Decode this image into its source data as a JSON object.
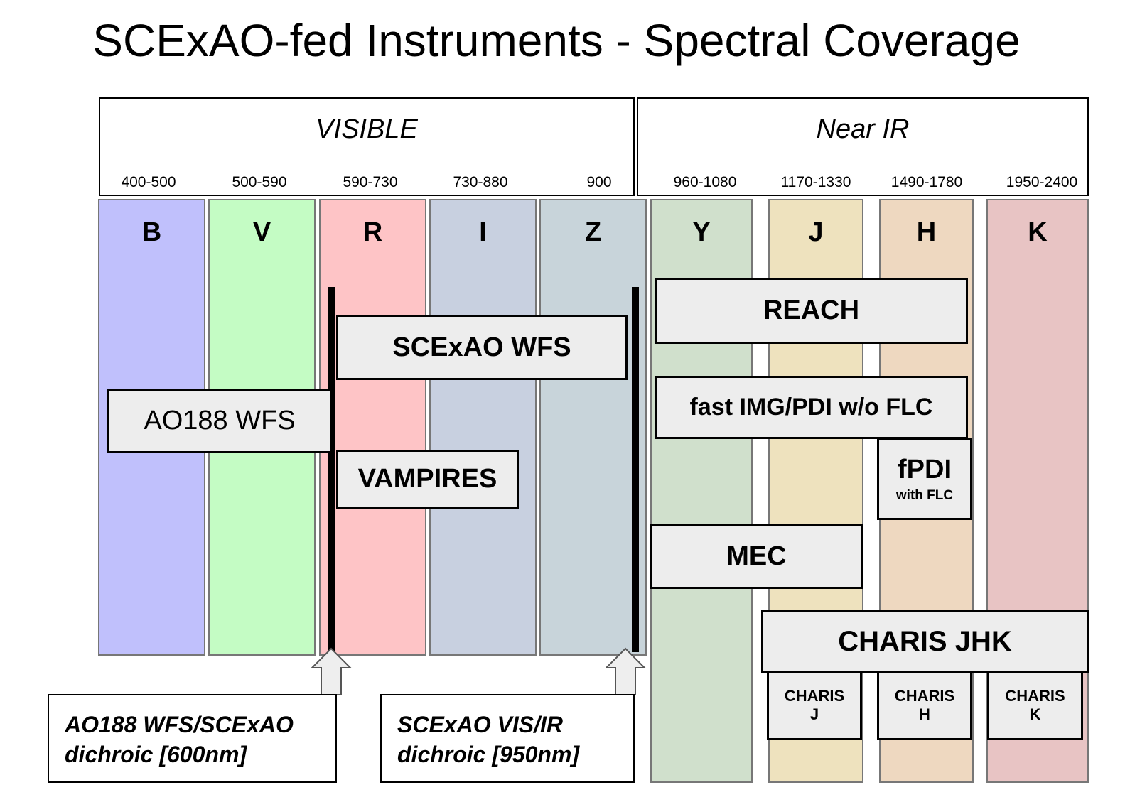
{
  "title": "SCExAO-fed Instruments - Spectral Coverage",
  "regions": [
    {
      "name": "VISIBLE",
      "ranges": [
        "400-500",
        "500-590",
        "590-730",
        "730-880",
        "900"
      ]
    },
    {
      "name": "Near IR",
      "ranges": [
        "960-1080",
        "1170-1330",
        "1490-1780",
        "1950-2400"
      ]
    }
  ],
  "bands": [
    {
      "label": "B",
      "color": "#c0c0fc"
    },
    {
      "label": "V",
      "color": "#c4fcc4"
    },
    {
      "label": "R",
      "color": "#fec4c6"
    },
    {
      "label": "I",
      "color": "#c8d0e0"
    },
    {
      "label": "Z",
      "color": "#c8d4da"
    },
    {
      "label": "Y",
      "color": "#d0e0cc"
    },
    {
      "label": "J",
      "color": "#eee2be"
    },
    {
      "label": "H",
      "color": "#eed8c0"
    },
    {
      "label": "K",
      "color": "#e8c4c4"
    }
  ],
  "instruments": {
    "reach": "REACH",
    "scexao_wfs": "SCExAO WFS",
    "fast_img": "fast IMG/PDI w/o FLC",
    "ao188_wfs": "AO188 WFS",
    "fpdi": "fPDI",
    "fpdi_sub": "with FLC",
    "vampires": "VAMPIRES",
    "mec": "MEC",
    "charis_jhk": "CHARIS JHK",
    "charis_j": [
      "CHARIS",
      "J"
    ],
    "charis_h": [
      "CHARIS",
      "H"
    ],
    "charis_k": [
      "CHARIS",
      "K"
    ]
  },
  "dichroics": [
    {
      "line1": "AO188 WFS/SCExAO",
      "line2": "dichroic [600nm]"
    },
    {
      "line1": "SCExAO VIS/IR",
      "line2": "dichroic [950nm]"
    }
  ]
}
